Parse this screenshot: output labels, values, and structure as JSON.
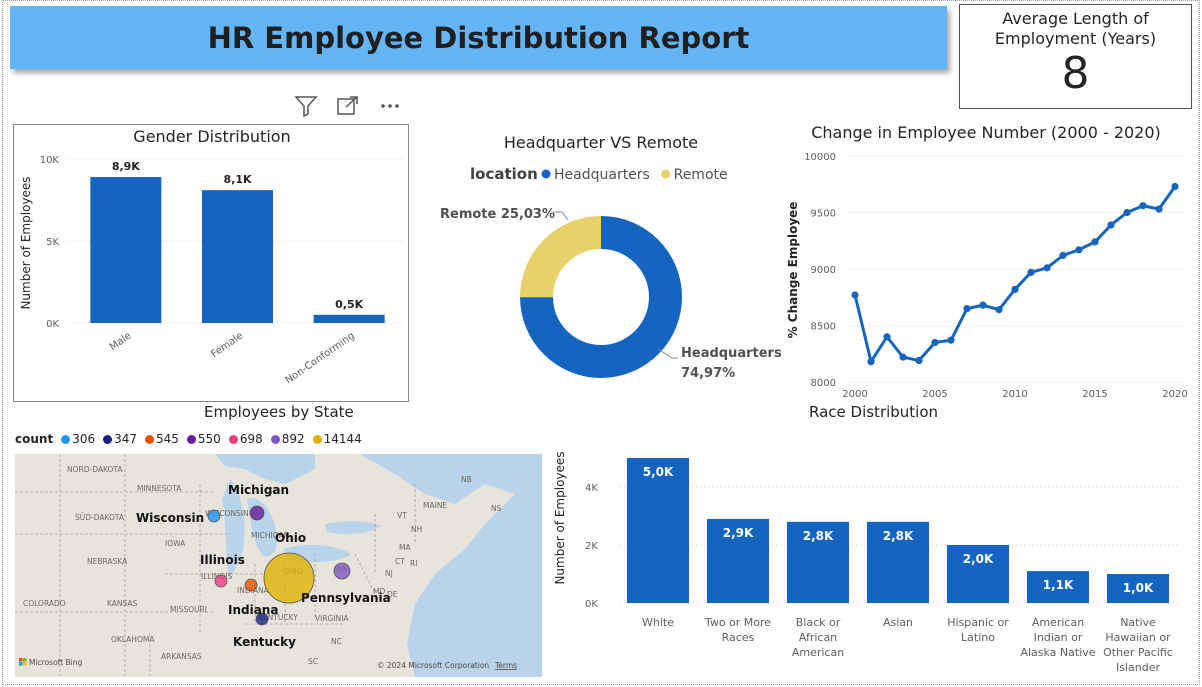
{
  "title": "HR Employee Distribution Report",
  "kpi": {
    "label": "Average Length of\nEmployment (Years)",
    "value": "8"
  },
  "visual_header": {
    "icons": [
      "filter-icon",
      "expand-icon",
      "more-options-icon"
    ]
  },
  "colors": {
    "primary": "#1565c0",
    "remote": "#e8d06a",
    "banner": "#64b5f6"
  },
  "map": {
    "title": "Employees by State",
    "legend_title": "count",
    "legend": [
      {
        "label": "306",
        "color": "#2196f3"
      },
      {
        "label": "347",
        "color": "#1a237e"
      },
      {
        "label": "545",
        "color": "#e65100"
      },
      {
        "label": "550",
        "color": "#6a1b9a"
      },
      {
        "label": "698",
        "color": "#ec407a"
      },
      {
        "label": "892",
        "color": "#7e57c2"
      },
      {
        "label": "14144",
        "color": "#e0b100"
      }
    ],
    "state_labels": [
      "Michigan",
      "Wisconsin",
      "Ohio",
      "Illinois",
      "Pennsylvania",
      "Indiana",
      "Kentucky"
    ],
    "geo_labels": [
      "NORD-DAKOTA",
      "MINNESOTA",
      "SÜD-DAKOTA",
      "IOWA",
      "NEBRASKA",
      "KANSAS",
      "COLORADO",
      "MISSOURI",
      "OKLAHOMA",
      "ARKANSAS",
      "VIRGINIA",
      "NC",
      "SC",
      "MAINE",
      "NB",
      "NS",
      "VT",
      "NH",
      "MA",
      "CT",
      "RI",
      "NJ",
      "MD",
      "DE",
      "WISCONSIN",
      "MICHIGAN",
      "ILLINOIS",
      "INDIANA",
      "OHIO",
      "KENTUCKY",
      "PA"
    ],
    "bing_label": "Microsoft Bing",
    "copyright": "© 2024 Microsoft Corporation",
    "terms": "Terms"
  },
  "chart_data": [
    {
      "type": "bar",
      "title": "Gender Distribution",
      "ylabel": "Number of Employees",
      "categories": [
        "Male",
        "Female",
        "Non-Conforming"
      ],
      "values": [
        8900,
        8100,
        500
      ],
      "data_labels": [
        "8,9K",
        "8,1K",
        "0,5K"
      ],
      "yticks": [
        0,
        5000,
        10000
      ],
      "ytick_labels": [
        "0K",
        "5K",
        "10K"
      ],
      "ylim": [
        0,
        10000
      ]
    },
    {
      "type": "pie",
      "title": "Headquarter VS Remote",
      "legend_title": "location",
      "categories": [
        "Headquarters",
        "Remote"
      ],
      "values": [
        74.97,
        25.03
      ],
      "data_labels": [
        "Headquarters\n74,97%",
        "Remote 25,03%"
      ]
    },
    {
      "type": "line",
      "title": "Change in Employee Number (2000 - 2020)",
      "ylabel": "% Change Employee",
      "x": [
        2000,
        2001,
        2002,
        2003,
        2004,
        2005,
        2006,
        2007,
        2008,
        2009,
        2010,
        2011,
        2012,
        2013,
        2014,
        2015,
        2016,
        2017,
        2018,
        2019,
        2020
      ],
      "y": [
        8770,
        8180,
        8400,
        8220,
        8190,
        8350,
        8370,
        8650,
        8680,
        8640,
        8820,
        8970,
        9010,
        9120,
        9170,
        9240,
        9390,
        9500,
        9560,
        9530,
        9730
      ],
      "xticks": [
        2000,
        2005,
        2010,
        2015,
        2020
      ],
      "yticks": [
        8000,
        8500,
        9000,
        9500,
        10000
      ],
      "xlim": [
        2000,
        2020
      ],
      "ylim": [
        8000,
        10000
      ]
    },
    {
      "type": "bar",
      "title": "Race Distribution",
      "ylabel": "Number of Employees",
      "categories": [
        "White",
        "Two or More Races",
        "Black or African American",
        "Asian",
        "Hispanic or Latino",
        "American Indian or Alaska Native",
        "Native Hawaiian or Other Pacific Islander"
      ],
      "category_lines": [
        [
          "White"
        ],
        [
          "Two or More",
          "Races"
        ],
        [
          "Black or",
          "African",
          "American"
        ],
        [
          "Asian"
        ],
        [
          "Hispanic or",
          "Latino"
        ],
        [
          "American",
          "Indian or",
          "Alaska Native"
        ],
        [
          "Native",
          "Hawaiian or",
          "Other Pacific",
          "Islander"
        ]
      ],
      "values": [
        5000,
        2900,
        2800,
        2800,
        2000,
        1100,
        1000
      ],
      "data_labels": [
        "5,0K",
        "2,9K",
        "2,8K",
        "2,8K",
        "2,0K",
        "1,1K",
        "1,0K"
      ],
      "yticks": [
        0,
        2000,
        4000
      ],
      "ytick_labels": [
        "0K",
        "2K",
        "4K"
      ],
      "ylim": [
        0,
        5000
      ]
    }
  ]
}
